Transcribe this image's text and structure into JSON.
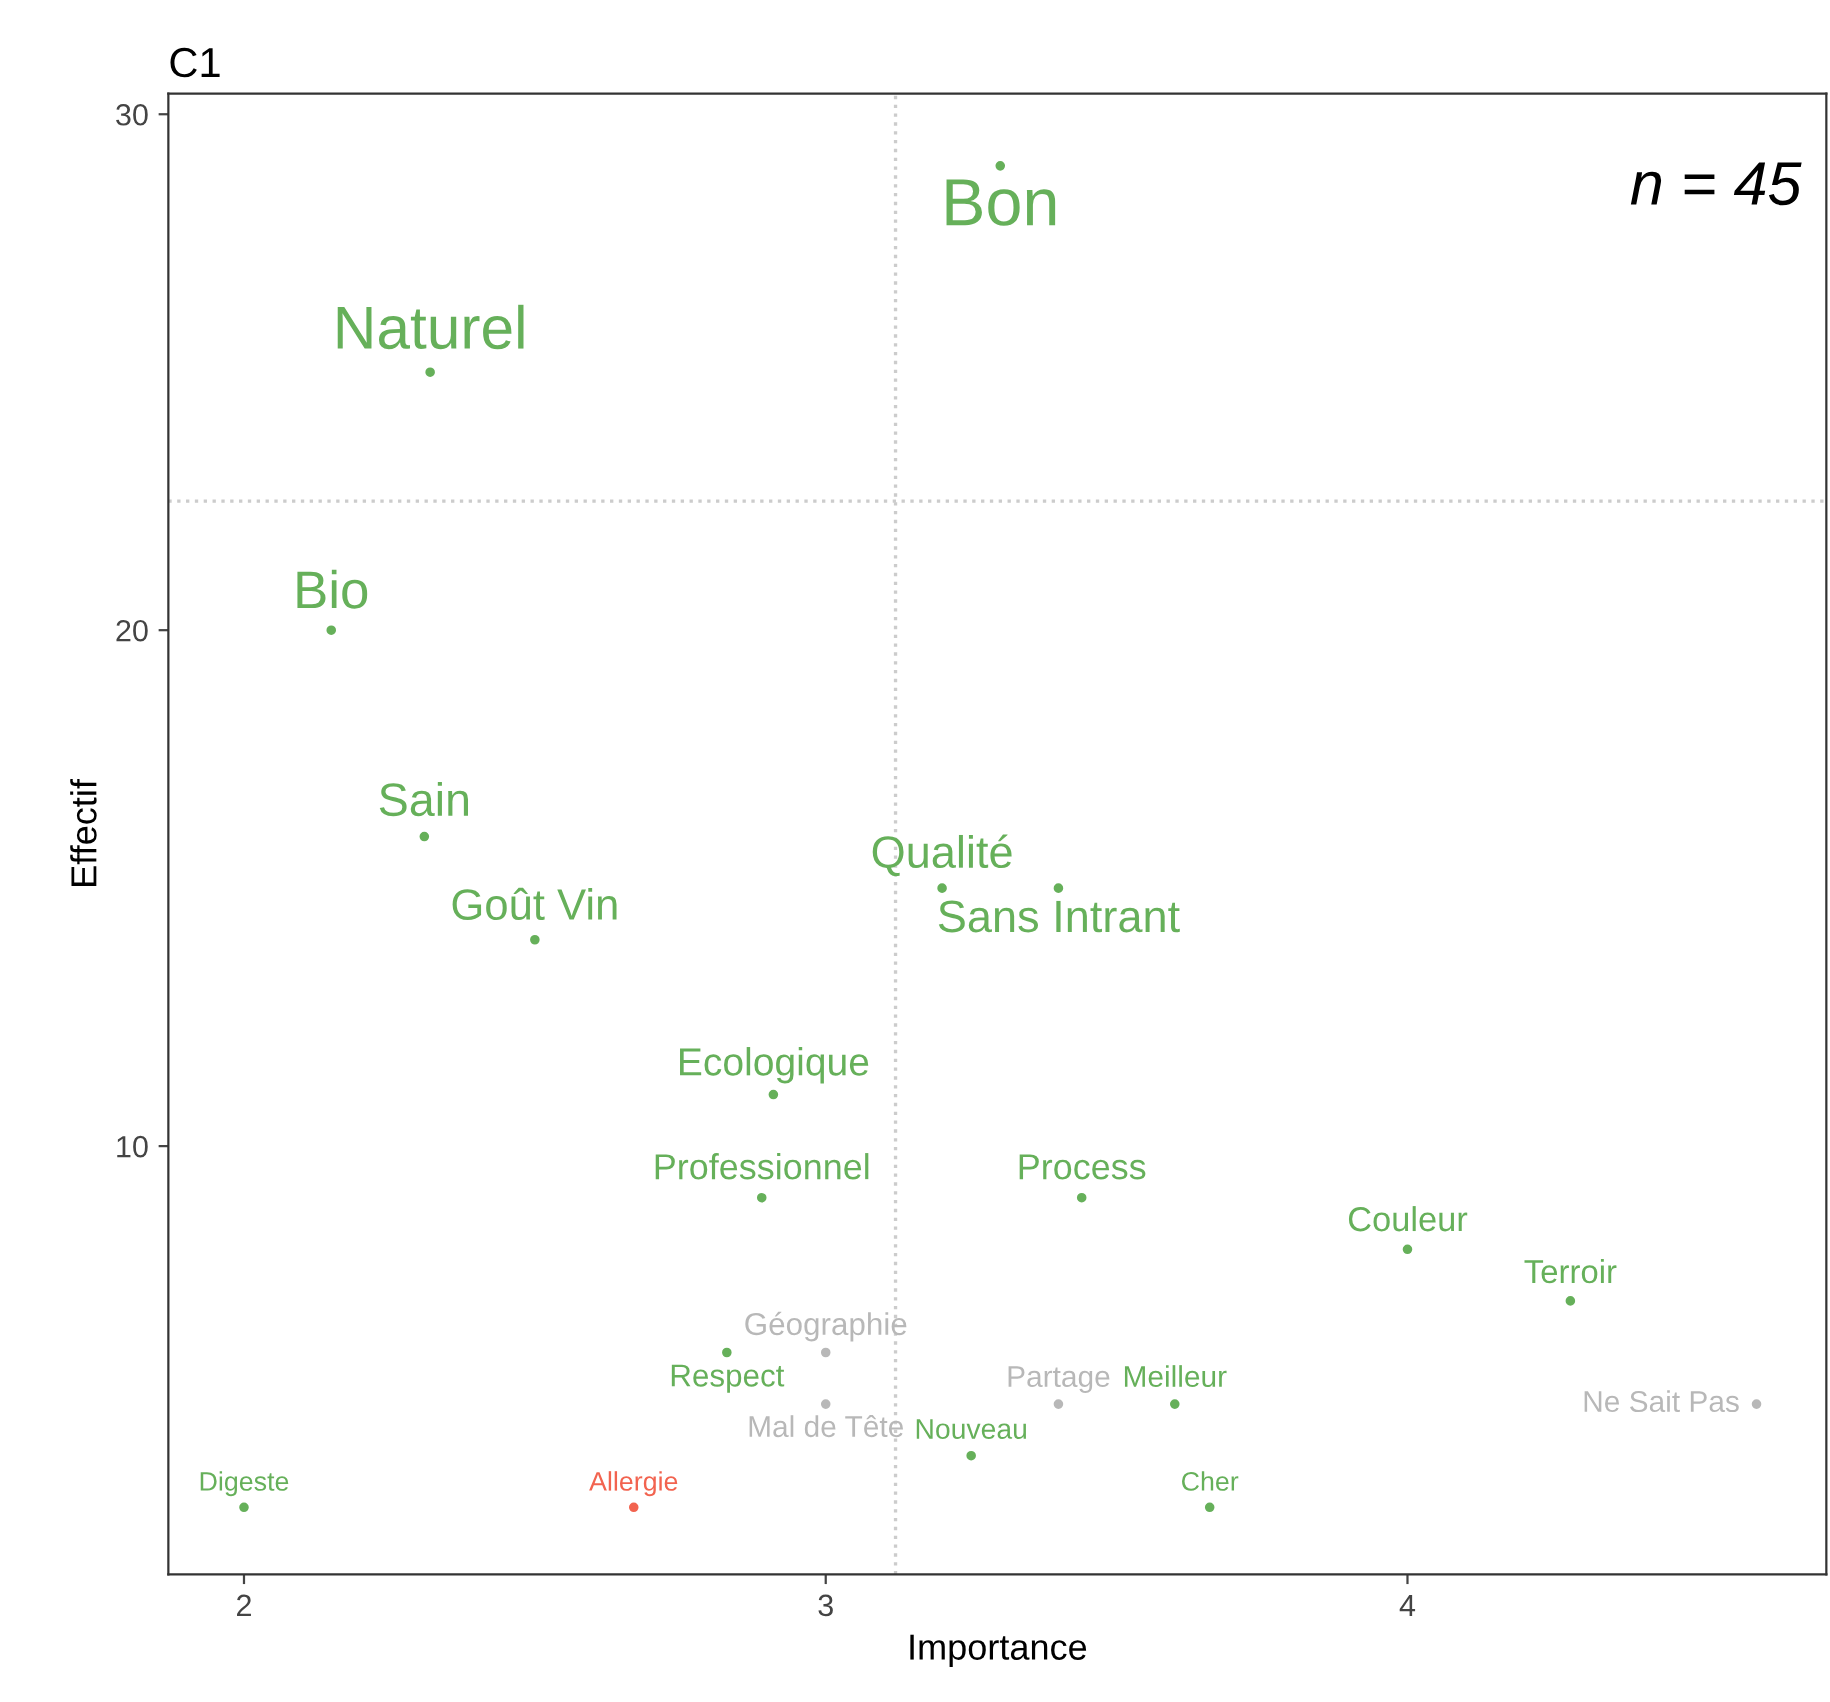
{
  "chart_data": {
    "type": "scatter",
    "title": "C1",
    "xlabel": "Importance",
    "ylabel": "Effectif",
    "xlim": [
      1.87,
      4.72
    ],
    "ylim": [
      1.7,
      30.4
    ],
    "xticks": [
      2,
      3,
      4
    ],
    "yticks": [
      10,
      20,
      30
    ],
    "grid": false,
    "legend": false,
    "marker": "circle",
    "series": [
      {
        "x": [
          3.3,
          2.32,
          2.15,
          2.31,
          2.5,
          3.2,
          3.4,
          2.91,
          2.89,
          3.44,
          4.0,
          4.28,
          3.0,
          2.83,
          3.4,
          3.0,
          3.6,
          4.6,
          3.25,
          2.0,
          2.67,
          3.66
        ],
        "values": [
          29,
          25,
          20,
          16,
          14,
          15,
          15,
          11,
          9,
          9,
          8,
          7,
          6,
          6,
          5,
          5,
          5,
          5,
          4,
          3,
          3,
          3
        ],
        "colors": [
          "#66b05a",
          "#66b05a",
          "#66b05a",
          "#66b05a",
          "#66b05a",
          "#66b05a",
          "#66b05a",
          "#66b05a",
          "#66b05a",
          "#66b05a",
          "#66b05a",
          "#66b05a",
          "#b8b8b8",
          "#66b05a",
          "#b8b8b8",
          "#b8b8b8",
          "#66b05a",
          "#b8b8b8",
          "#66b05a",
          "#66b05a",
          "#f2634f",
          "#66b05a"
        ]
      }
    ],
    "ref_lines": [
      {
        "axis": "x",
        "value": 3.12,
        "color": "#cccccc",
        "line_style": "dotted"
      },
      {
        "axis": "y",
        "value": 22.5,
        "color": "#cccccc",
        "line_style": "dotted"
      }
    ],
    "annotations": [
      {
        "text": "Bon",
        "x": 3.3,
        "y": 29
      },
      {
        "text": "Naturel",
        "x": 2.32,
        "y": 25
      },
      {
        "text": "Bio",
        "x": 2.15,
        "y": 20
      },
      {
        "text": "Sain",
        "x": 2.31,
        "y": 16
      },
      {
        "text": "Goût Vin",
        "x": 2.5,
        "y": 14
      },
      {
        "text": "Qualité",
        "x": 3.2,
        "y": 15
      },
      {
        "text": "Sans Intrant",
        "x": 3.4,
        "y": 15
      },
      {
        "text": "Ecologique",
        "x": 2.91,
        "y": 11
      },
      {
        "text": "Professionnel",
        "x": 2.89,
        "y": 9
      },
      {
        "text": "Process",
        "x": 3.44,
        "y": 9
      },
      {
        "text": "Couleur",
        "x": 4.0,
        "y": 8
      },
      {
        "text": "Terroir",
        "x": 4.28,
        "y": 7
      },
      {
        "text": "Géographie",
        "x": 3.0,
        "y": 6
      },
      {
        "text": "Respect",
        "x": 2.83,
        "y": 6
      },
      {
        "text": "Partage",
        "x": 3.4,
        "y": 5
      },
      {
        "text": "Mal de Tête",
        "x": 3.0,
        "y": 5
      },
      {
        "text": "Meilleur",
        "x": 3.6,
        "y": 5
      },
      {
        "text": "Ne Sait Pas",
        "x": 4.6,
        "y": 5
      },
      {
        "text": "Nouveau",
        "x": 3.25,
        "y": 4
      },
      {
        "text": "Digeste",
        "x": 2.0,
        "y": 3
      },
      {
        "text": "Allergie",
        "x": 2.67,
        "y": 3
      },
      {
        "text": "Cher",
        "x": 3.66,
        "y": 3
      },
      "n = 45"
    ]
  }
}
